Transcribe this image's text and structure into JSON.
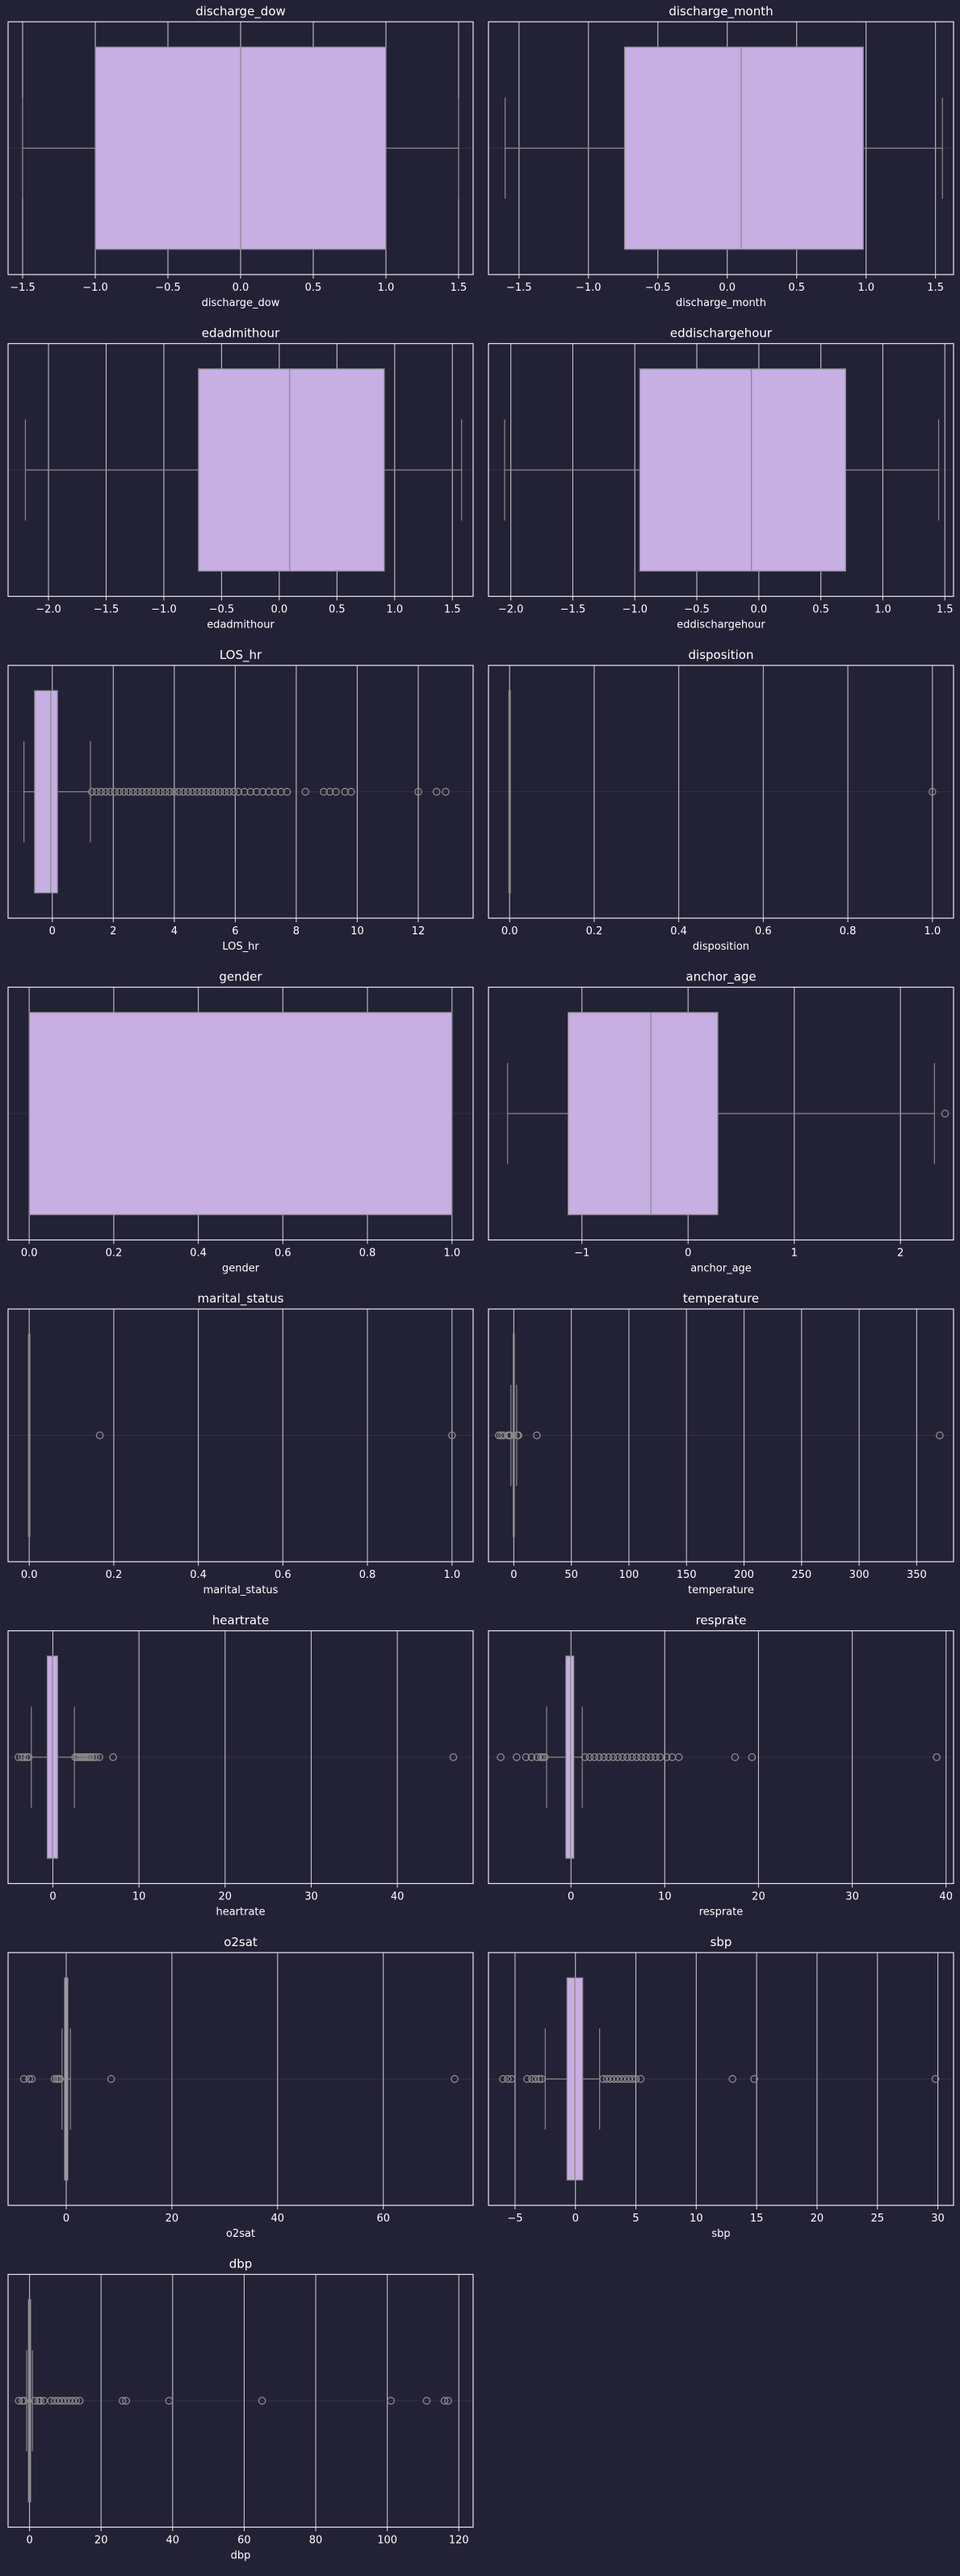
{
  "colors": {
    "background": "#232136",
    "box_fill": "#c7aee3",
    "line": "#8a8a8a",
    "grid": "#d4d4d8",
    "spine": "#e8e8ee",
    "text": "#ffffff"
  },
  "chart_data": [
    {
      "type": "box",
      "title": "discharge_dow",
      "xlabel": "discharge_dow",
      "xlim": [
        -1.6,
        1.6
      ],
      "ticks": [
        -1.5,
        -1.0,
        -0.5,
        0.0,
        0.5,
        1.0,
        1.5
      ],
      "tick_labels": [
        "−1.5",
        "−1.0",
        "−0.5",
        "0.0",
        "0.5",
        "1.0",
        "1.5"
      ],
      "q1": -1.0,
      "median": 0.0,
      "q3": 1.0,
      "whisker_low": -1.5,
      "whisker_high": 1.5,
      "outliers": []
    },
    {
      "type": "box",
      "title": "discharge_month",
      "xlabel": "discharge_month",
      "xlim": [
        -1.72,
        1.63
      ],
      "ticks": [
        -1.5,
        -1.0,
        -0.5,
        0.0,
        0.5,
        1.0,
        1.5
      ],
      "tick_labels": [
        "−1.5",
        "−1.0",
        "−0.5",
        "0.0",
        "0.5",
        "1.0",
        "1.5"
      ],
      "q1": -0.74,
      "median": 0.1,
      "q3": 0.98,
      "whisker_low": -1.6,
      "whisker_high": 1.55,
      "outliers": []
    },
    {
      "type": "box",
      "title": "edadmithour",
      "xlabel": "edadmithour",
      "xlim": [
        -2.35,
        1.68
      ],
      "ticks": [
        -2.0,
        -1.5,
        -1.0,
        -0.5,
        0.0,
        0.5,
        1.0,
        1.5
      ],
      "tick_labels": [
        "−2.0",
        "−1.5",
        "−1.0",
        "−0.5",
        "0.0",
        "0.5",
        "1.0",
        "1.5"
      ],
      "q1": -0.7,
      "median": 0.09,
      "q3": 0.91,
      "whisker_low": -2.2,
      "whisker_high": 1.58,
      "outliers": []
    },
    {
      "type": "box",
      "title": "eddischargehour",
      "xlabel": "eddischargehour",
      "xlim": [
        -2.18,
        1.57
      ],
      "ticks": [
        -2.0,
        -1.5,
        -1.0,
        -0.5,
        0.0,
        0.5,
        1.0,
        1.5
      ],
      "tick_labels": [
        "−2.0",
        "−1.5",
        "−1.0",
        "−0.5",
        "0.0",
        "0.5",
        "1.0",
        "1.5"
      ],
      "q1": -0.96,
      "median": -0.06,
      "q3": 0.7,
      "whisker_low": -2.05,
      "whisker_high": 1.45,
      "outliers": []
    },
    {
      "type": "box",
      "title": "LOS_hr",
      "xlabel": "LOS_hr",
      "xlim": [
        -1.45,
        13.8
      ],
      "ticks": [
        0,
        2,
        4,
        6,
        8,
        10,
        12
      ],
      "tick_labels": [
        "0",
        "2",
        "4",
        "6",
        "8",
        "10",
        "12"
      ],
      "q1": -0.58,
      "median": -0.05,
      "q3": 0.17,
      "whisker_low": -0.93,
      "whisker_high": 1.25,
      "outliers": [
        1.3,
        1.45,
        1.6,
        1.75,
        1.9,
        2.05,
        2.2,
        2.35,
        2.5,
        2.65,
        2.8,
        2.95,
        3.1,
        3.25,
        3.4,
        3.55,
        3.7,
        3.85,
        4.0,
        4.15,
        4.3,
        4.45,
        4.6,
        4.75,
        4.9,
        5.05,
        5.2,
        5.35,
        5.5,
        5.65,
        5.8,
        5.95,
        6.1,
        6.3,
        6.5,
        6.7,
        6.9,
        7.1,
        7.3,
        7.5,
        7.7,
        8.3,
        8.9,
        9.1,
        9.3,
        9.6,
        9.8,
        12.0,
        12.6,
        12.9
      ]
    },
    {
      "type": "box",
      "title": "disposition",
      "xlabel": "disposition",
      "xlim": [
        -0.05,
        1.05
      ],
      "ticks": [
        0.0,
        0.2,
        0.4,
        0.6,
        0.8,
        1.0
      ],
      "tick_labels": [
        "0.0",
        "0.2",
        "0.4",
        "0.6",
        "0.8",
        "1.0"
      ],
      "q1": 0.0,
      "median": 0.0,
      "q3": 0.0,
      "whisker_low": 0.0,
      "whisker_high": 0.0,
      "outliers": [
        1.0
      ]
    },
    {
      "type": "box",
      "title": "gender",
      "xlabel": "gender",
      "xlim": [
        -0.05,
        1.05
      ],
      "ticks": [
        0.0,
        0.2,
        0.4,
        0.6,
        0.8,
        1.0
      ],
      "tick_labels": [
        "0.0",
        "0.2",
        "0.4",
        "0.6",
        "0.8",
        "1.0"
      ],
      "q1": 0.0,
      "median": 0.0,
      "q3": 1.0,
      "whisker_low": 0.0,
      "whisker_high": 1.0,
      "outliers": []
    },
    {
      "type": "box",
      "title": "anchor_age",
      "xlabel": "anchor_age",
      "xlim": [
        -1.88,
        2.5
      ],
      "ticks": [
        -1,
        0,
        1,
        2
      ],
      "tick_labels": [
        "−1",
        "0",
        "1",
        "2"
      ],
      "q1": -1.13,
      "median": -0.35,
      "q3": 0.28,
      "whisker_low": -1.7,
      "whisker_high": 2.32,
      "outliers": [
        2.42
      ]
    },
    {
      "type": "box",
      "title": "marital_status",
      "xlabel": "marital_status",
      "xlim": [
        -0.05,
        1.05
      ],
      "ticks": [
        0.0,
        0.2,
        0.4,
        0.6,
        0.8,
        1.0
      ],
      "tick_labels": [
        "0.0",
        "0.2",
        "0.4",
        "0.6",
        "0.8",
        "1.0"
      ],
      "q1": 0.0,
      "median": 0.0,
      "q3": 0.0,
      "whisker_low": 0.0,
      "whisker_high": 0.0,
      "outliers": [
        0.167,
        1.0
      ]
    },
    {
      "type": "box",
      "title": "temperature",
      "xlabel": "temperature",
      "xlim": [
        -22,
        382
      ],
      "ticks": [
        0,
        50,
        100,
        150,
        200,
        250,
        300,
        350
      ],
      "tick_labels": [
        "0",
        "50",
        "100",
        "150",
        "200",
        "250",
        "300",
        "350"
      ],
      "q1": -0.5,
      "median": 0.0,
      "q3": 0.5,
      "whisker_low": -2.5,
      "whisker_high": 2.5,
      "outliers": [
        -13,
        -11,
        -9,
        -5,
        -4,
        -3,
        3,
        4,
        20,
        370
      ]
    },
    {
      "type": "box",
      "title": "heartrate",
      "xlabel": "heartrate",
      "xlim": [
        -5.2,
        48.8
      ],
      "ticks": [
        0,
        10,
        20,
        30,
        40
      ],
      "tick_labels": [
        "0",
        "10",
        "20",
        "30",
        "40"
      ],
      "q1": -0.65,
      "median": -0.05,
      "q3": 0.55,
      "whisker_low": -2.5,
      "whisker_high": 2.5,
      "outliers": [
        -4,
        -3.6,
        -3.3,
        -3.0,
        -2.8,
        2.6,
        2.8,
        3.0,
        3.2,
        3.4,
        3.6,
        3.8,
        4.0,
        4.2,
        4.4,
        4.7,
        5.0,
        5.4,
        7.0,
        46.5
      ]
    },
    {
      "type": "box",
      "title": "resprate",
      "xlabel": "resprate",
      "xlim": [
        -8.8,
        40.8
      ],
      "ticks": [
        0,
        10,
        20,
        30,
        40
      ],
      "tick_labels": [
        "0",
        "10",
        "20",
        "30",
        "40"
      ],
      "q1": -0.55,
      "median": -0.05,
      "q3": 0.3,
      "whisker_low": -2.6,
      "whisker_high": 1.2,
      "outliers": [
        -7.5,
        -5.8,
        -4.8,
        -4.2,
        -3.6,
        -3.2,
        -3.0,
        -2.8,
        1.5,
        2.0,
        2.5,
        3.0,
        3.5,
        4.0,
        4.5,
        5.0,
        5.5,
        6.0,
        6.5,
        7.0,
        7.5,
        8.0,
        8.5,
        9.0,
        9.5,
        10.2,
        10.8,
        11.5,
        17.5,
        19.3,
        39.0
      ]
    },
    {
      "type": "box",
      "title": "o2sat",
      "xlabel": "o2sat",
      "xlim": [
        -11,
        77
      ],
      "ticks": [
        0,
        20,
        40,
        60
      ],
      "tick_labels": [
        "0",
        "20",
        "40",
        "60"
      ],
      "q1": -0.3,
      "median": 0.0,
      "q3": 0.3,
      "whisker_low": -0.8,
      "whisker_high": 0.8,
      "outliers": [
        -8,
        -7,
        -6.5,
        -2.2,
        -1.8,
        -1.5,
        -1.2,
        8.5,
        73.5
      ]
    },
    {
      "type": "box",
      "title": "sbp",
      "xlabel": "sbp",
      "xlim": [
        -7.2,
        31.3
      ],
      "ticks": [
        -5,
        0,
        5,
        10,
        15,
        20,
        25,
        30
      ],
      "tick_labels": [
        "−5",
        "0",
        "5",
        "10",
        "15",
        "20",
        "25",
        "30"
      ],
      "q1": -0.7,
      "median": -0.05,
      "q3": 0.6,
      "whisker_low": -2.5,
      "whisker_high": 2.0,
      "outliers": [
        -6,
        -5.6,
        -5.3,
        -4.0,
        -3.6,
        -3.3,
        -3.0,
        -2.8,
        2.3,
        2.6,
        2.9,
        3.2,
        3.5,
        3.8,
        4.1,
        4.4,
        4.7,
        5.0,
        5.4,
        13.0,
        14.8,
        29.8
      ]
    },
    {
      "type": "box",
      "title": "dbp",
      "xlabel": "dbp",
      "xlim": [
        -6,
        124
      ],
      "ticks": [
        0,
        20,
        40,
        60,
        80,
        100,
        120
      ],
      "tick_labels": [
        "0",
        "20",
        "40",
        "60",
        "80",
        "100",
        "120"
      ],
      "q1": -0.3,
      "median": 0.0,
      "q3": 0.3,
      "whisker_low": -0.8,
      "whisker_high": 0.8,
      "outliers": [
        -3,
        -2,
        -1.5,
        1.5,
        2.5,
        3,
        4,
        6,
        7,
        8,
        9,
        10,
        11,
        12,
        13,
        14,
        26,
        27,
        39,
        65,
        101,
        111,
        116,
        117
      ]
    }
  ]
}
